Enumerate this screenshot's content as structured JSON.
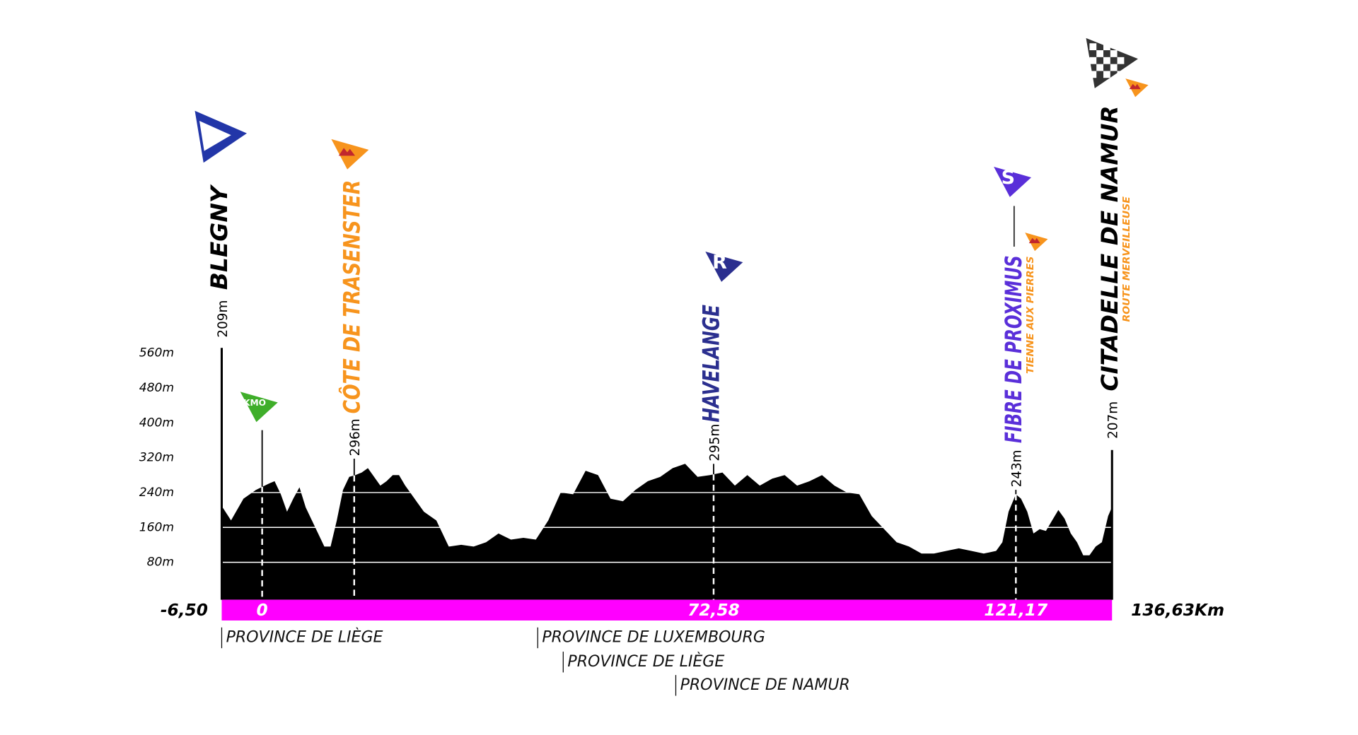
{
  "chart_data": {
    "type": "area",
    "x": [
      -6.5,
      -5,
      -3,
      -1,
      1,
      2,
      3,
      4,
      5,
      6,
      7,
      8,
      9,
      10,
      11,
      12,
      13,
      14,
      15,
      16,
      17,
      18,
      19,
      20,
      21,
      22,
      23,
      24,
      25,
      26,
      27,
      28,
      29,
      30,
      32,
      34,
      36,
      38,
      40,
      42,
      44,
      46,
      48,
      50,
      52,
      54,
      56,
      58,
      60,
      62,
      64,
      66,
      68,
      70,
      72,
      74,
      76,
      78,
      80,
      82,
      84,
      86,
      88,
      90,
      92,
      94,
      96,
      98,
      100,
      102,
      104,
      106,
      108,
      110,
      112,
      114,
      116,
      118,
      119,
      120,
      121.17,
      122,
      123,
      124,
      125,
      126,
      127,
      128,
      129,
      130,
      131,
      132,
      133,
      134,
      135,
      136,
      136.63
    ],
    "values": [
      209,
      176,
      226,
      246,
      260,
      266,
      236,
      196,
      226,
      252,
      206,
      176,
      146,
      116,
      116,
      176,
      246,
      276,
      280,
      286,
      296,
      276,
      256,
      266,
      280,
      280,
      256,
      236,
      216,
      196,
      186,
      176,
      146,
      116,
      120,
      116,
      126,
      146,
      132,
      136,
      132,
      176,
      240,
      236,
      290,
      280,
      226,
      220,
      246,
      266,
      276,
      296,
      306,
      276,
      280,
      286,
      256,
      280,
      256,
      272,
      280,
      256,
      266,
      280,
      256,
      240,
      236,
      186,
      156,
      126,
      116,
      100,
      100,
      106,
      112,
      106,
      100,
      106,
      126,
      196,
      236,
      226,
      196,
      146,
      156,
      152,
      176,
      200,
      180,
      146,
      126,
      96,
      96,
      116,
      126,
      186,
      207
    ],
    "color": "#000000",
    "xlim": [
      -6.5,
      136.63
    ],
    "ylim": [
      0,
      560
    ],
    "yticks": [
      {
        "value": 80,
        "label": "80m"
      },
      {
        "value": 160,
        "label": "160m"
      },
      {
        "value": 240,
        "label": "240m"
      },
      {
        "value": 320,
        "label": "320m"
      },
      {
        "value": 400,
        "label": "400m"
      },
      {
        "value": 480,
        "label": "480m"
      },
      {
        "value": 560,
        "label": "560m"
      }
    ],
    "xticks": [
      {
        "value": -6.5,
        "label": "-6,50"
      },
      0,
      {
        "value": 72.58,
        "label": "72,58"
      },
      {
        "value": 121.17,
        "label": "121,17"
      },
      {
        "value": 136.63,
        "label": "136,63Km"
      }
    ],
    "grid": true,
    "grid_color": "#ffffff",
    "baseline_color": "#ff00ff",
    "annotations": [
      {
        "km": -6.5,
        "label": "BLEGNY",
        "elevation": "209m",
        "color": "#000000"
      },
      {
        "km": 0,
        "icon_text": "KMO",
        "color": "#3fae2a"
      },
      {
        "km": 14.8,
        "label": "CÔTE DE TRASENSTER",
        "elevation": "296m",
        "color": "#f7941d"
      },
      {
        "km": 72.58,
        "label": "HAVELANGE",
        "elevation": "295m",
        "icon_text": "R",
        "color": "#2b2f8f"
      },
      {
        "km": 121.17,
        "label": "FIBRE DE PROXIMUS",
        "subtitle": "TIENNE AUX PIERRES",
        "elevation": "243m",
        "icon_text": "S",
        "color": "#5a2fd9"
      },
      {
        "km": 136.63,
        "label": "CITADELLE DE NAMUR",
        "subtitle": "ROUTE MERVEILLEUSE",
        "elevation": "207m",
        "color": "#000000"
      }
    ],
    "regions": [
      {
        "km": -6.5,
        "label": "PROVINCE DE LIÈGE"
      },
      {
        "km": 44.3,
        "label": "PROVINCE DE LUXEMBOURG"
      },
      {
        "km": 48.4,
        "label": "PROVINCE DE LIÈGE"
      },
      {
        "km": 66.5,
        "label": "PROVINCE DE NAMUR"
      }
    ]
  }
}
